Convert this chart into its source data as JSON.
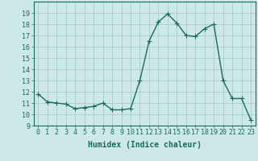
{
  "x": [
    0,
    1,
    2,
    3,
    4,
    5,
    6,
    7,
    8,
    9,
    10,
    11,
    12,
    13,
    14,
    15,
    16,
    17,
    18,
    19,
    20,
    21,
    22,
    23
  ],
  "y": [
    11.8,
    11.1,
    11.0,
    10.9,
    10.5,
    10.6,
    10.7,
    11.0,
    10.4,
    10.4,
    10.5,
    13.0,
    16.5,
    18.2,
    18.9,
    18.1,
    17.0,
    16.9,
    17.6,
    18.0,
    13.0,
    11.4,
    11.4,
    9.5
  ],
  "line_color": "#1a6b5a",
  "marker": "+",
  "marker_size": 4,
  "marker_linewidth": 0.8,
  "bg_color": "#cce8e8",
  "grid_color": "#aacccc",
  "xlabel": "Humidex (Indice chaleur)",
  "xlabel_fontsize": 7,
  "ylim": [
    9,
    20
  ],
  "xlim": [
    -0.5,
    23.5
  ],
  "yticks": [
    9,
    10,
    11,
    12,
    13,
    14,
    15,
    16,
    17,
    18,
    19
  ],
  "xticks": [
    0,
    1,
    2,
    3,
    4,
    5,
    6,
    7,
    8,
    9,
    10,
    11,
    12,
    13,
    14,
    15,
    16,
    17,
    18,
    19,
    20,
    21,
    22,
    23
  ],
  "tick_fontsize": 6,
  "linewidth": 1.0
}
